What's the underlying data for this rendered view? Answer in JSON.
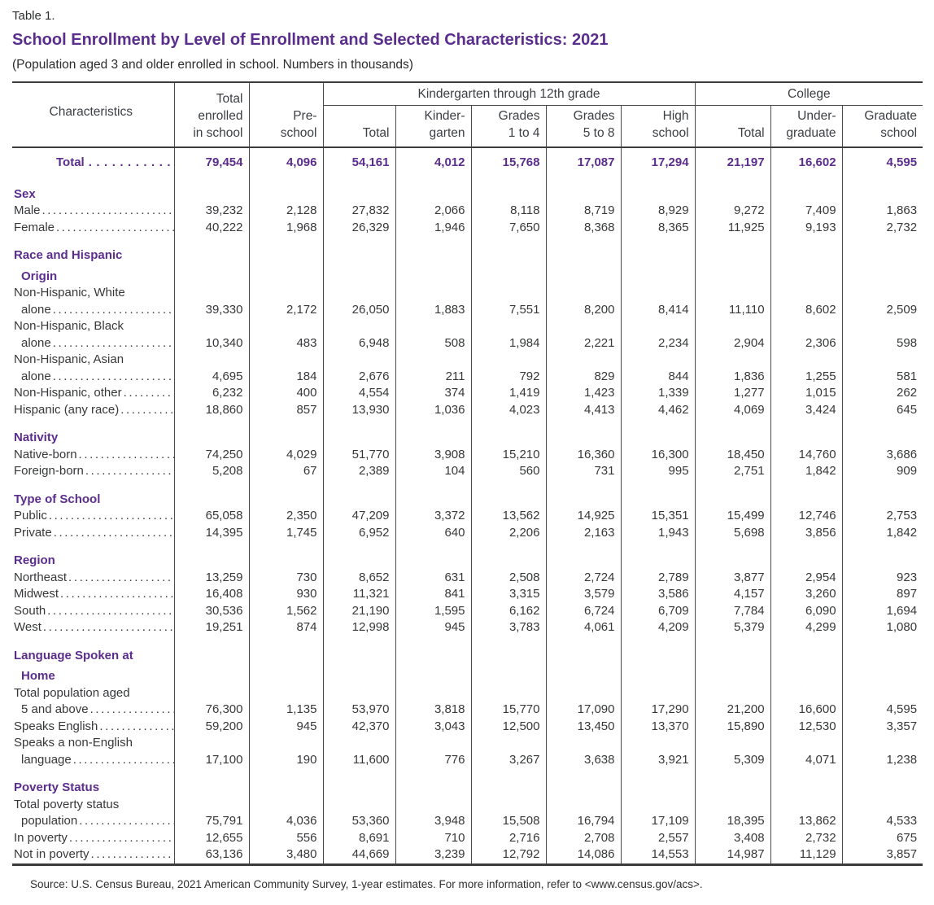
{
  "doc": {
    "table_label": "Table 1.",
    "title": "School Enrollment by Level of Enrollment and Selected Characteristics: 2021",
    "subtitle": "(Population aged 3 and older enrolled in school. Numbers in thousands)",
    "accent_color": "#5b2d8c",
    "header": {
      "characteristics": "Characteristics",
      "total_enrolled": "Total\nenrolled\nin school",
      "preschool": "Pre-\nschool",
      "k12_group": "Kindergarten through 12th grade",
      "k12_cols": [
        "Total",
        "Kinder-\ngarten",
        "Grades\n1 to 4",
        "Grades\n5 to 8",
        "High\nschool"
      ],
      "college_group": "College",
      "college_cols": [
        "Total",
        "Under-\ngraduate",
        "Graduate\nschool"
      ]
    },
    "total_row": {
      "label": "Total",
      "values": [
        "79,454",
        "4,096",
        "54,161",
        "4,012",
        "15,768",
        "17,087",
        "17,294",
        "21,197",
        "16,602",
        "4,595"
      ]
    },
    "sections": [
      {
        "heading_lines": [
          "Sex"
        ],
        "rows": [
          {
            "label_lines": [
              "Male"
            ],
            "values": [
              "39,232",
              "2,128",
              "27,832",
              "2,066",
              "8,118",
              "8,719",
              "8,929",
              "9,272",
              "7,409",
              "1,863"
            ]
          },
          {
            "label_lines": [
              "Female"
            ],
            "values": [
              "40,222",
              "1,968",
              "26,329",
              "1,946",
              "7,650",
              "8,368",
              "8,365",
              "11,925",
              "9,193",
              "2,732"
            ]
          }
        ]
      },
      {
        "heading_lines": [
          "Race and Hispanic",
          "Origin"
        ],
        "rows": [
          {
            "label_lines": [
              "Non-Hispanic, White",
              "alone"
            ],
            "values": [
              "39,330",
              "2,172",
              "26,050",
              "1,883",
              "7,551",
              "8,200",
              "8,414",
              "11,110",
              "8,602",
              "2,509"
            ]
          },
          {
            "label_lines": [
              "Non-Hispanic, Black",
              "alone"
            ],
            "values": [
              "10,340",
              "483",
              "6,948",
              "508",
              "1,984",
              "2,221",
              "2,234",
              "2,904",
              "2,306",
              "598"
            ]
          },
          {
            "label_lines": [
              "Non-Hispanic, Asian",
              "alone"
            ],
            "values": [
              "4,695",
              "184",
              "2,676",
              "211",
              "792",
              "829",
              "844",
              "1,836",
              "1,255",
              "581"
            ]
          },
          {
            "label_lines": [
              "Non-Hispanic, other"
            ],
            "values": [
              "6,232",
              "400",
              "4,554",
              "374",
              "1,419",
              "1,423",
              "1,339",
              "1,277",
              "1,015",
              "262"
            ]
          },
          {
            "label_lines": [
              "Hispanic (any race)"
            ],
            "values": [
              "18,860",
              "857",
              "13,930",
              "1,036",
              "4,023",
              "4,413",
              "4,462",
              "4,069",
              "3,424",
              "645"
            ]
          }
        ]
      },
      {
        "heading_lines": [
          "Nativity"
        ],
        "rows": [
          {
            "label_lines": [
              "Native-born"
            ],
            "values": [
              "74,250",
              "4,029",
              "51,770",
              "3,908",
              "15,210",
              "16,360",
              "16,300",
              "18,450",
              "14,760",
              "3,686"
            ]
          },
          {
            "label_lines": [
              "Foreign-born"
            ],
            "values": [
              "5,208",
              "67",
              "2,389",
              "104",
              "560",
              "731",
              "995",
              "2,751",
              "1,842",
              "909"
            ]
          }
        ]
      },
      {
        "heading_lines": [
          "Type of School"
        ],
        "rows": [
          {
            "label_lines": [
              "Public"
            ],
            "values": [
              "65,058",
              "2,350",
              "47,209",
              "3,372",
              "13,562",
              "14,925",
              "15,351",
              "15,499",
              "12,746",
              "2,753"
            ]
          },
          {
            "label_lines": [
              "Private"
            ],
            "values": [
              "14,395",
              "1,745",
              "6,952",
              "640",
              "2,206",
              "2,163",
              "1,943",
              "5,698",
              "3,856",
              "1,842"
            ]
          }
        ]
      },
      {
        "heading_lines": [
          "Region"
        ],
        "rows": [
          {
            "label_lines": [
              "Northeast"
            ],
            "values": [
              "13,259",
              "730",
              "8,652",
              "631",
              "2,508",
              "2,724",
              "2,789",
              "3,877",
              "2,954",
              "923"
            ]
          },
          {
            "label_lines": [
              "Midwest"
            ],
            "values": [
              "16,408",
              "930",
              "11,321",
              "841",
              "3,315",
              "3,579",
              "3,586",
              "4,157",
              "3,260",
              "897"
            ]
          },
          {
            "label_lines": [
              "South"
            ],
            "values": [
              "30,536",
              "1,562",
              "21,190",
              "1,595",
              "6,162",
              "6,724",
              "6,709",
              "7,784",
              "6,090",
              "1,694"
            ]
          },
          {
            "label_lines": [
              "West"
            ],
            "values": [
              "19,251",
              "874",
              "12,998",
              "945",
              "3,783",
              "4,061",
              "4,209",
              "5,379",
              "4,299",
              "1,080"
            ]
          }
        ]
      },
      {
        "heading_lines": [
          "Language Spoken at",
          "Home"
        ],
        "rows": [
          {
            "label_lines": [
              "Total population aged",
              "5 and above"
            ],
            "values": [
              "76,300",
              "1,135",
              "53,970",
              "3,818",
              "15,770",
              "17,090",
              "17,290",
              "21,200",
              "16,600",
              "4,595"
            ]
          },
          {
            "label_lines": [
              "Speaks English"
            ],
            "values": [
              "59,200",
              "945",
              "42,370",
              "3,043",
              "12,500",
              "13,450",
              "13,370",
              "15,890",
              "12,530",
              "3,357"
            ]
          },
          {
            "label_lines": [
              "Speaks a non-English",
              "language"
            ],
            "values": [
              "17,100",
              "190",
              "11,600",
              "776",
              "3,267",
              "3,638",
              "3,921",
              "5,309",
              "4,071",
              "1,238"
            ]
          }
        ]
      },
      {
        "heading_lines": [
          "Poverty Status"
        ],
        "rows": [
          {
            "label_lines": [
              "Total poverty status",
              "population"
            ],
            "values": [
              "75,791",
              "4,036",
              "53,360",
              "3,948",
              "15,508",
              "16,794",
              "17,109",
              "18,395",
              "13,862",
              "4,533"
            ]
          },
          {
            "label_lines": [
              "In poverty"
            ],
            "values": [
              "12,655",
              "556",
              "8,691",
              "710",
              "2,716",
              "2,708",
              "2,557",
              "3,408",
              "2,732",
              "675"
            ]
          },
          {
            "label_lines": [
              "Not in poverty"
            ],
            "values": [
              "63,136",
              "3,480",
              "44,669",
              "3,239",
              "12,792",
              "14,086",
              "14,553",
              "14,987",
              "11,129",
              "3,857"
            ]
          }
        ]
      }
    ],
    "source": "Source: U.S. Census Bureau, 2021 American Community Survey, 1-year estimates. For more information, refer to <www.census.gov/acs>."
  }
}
